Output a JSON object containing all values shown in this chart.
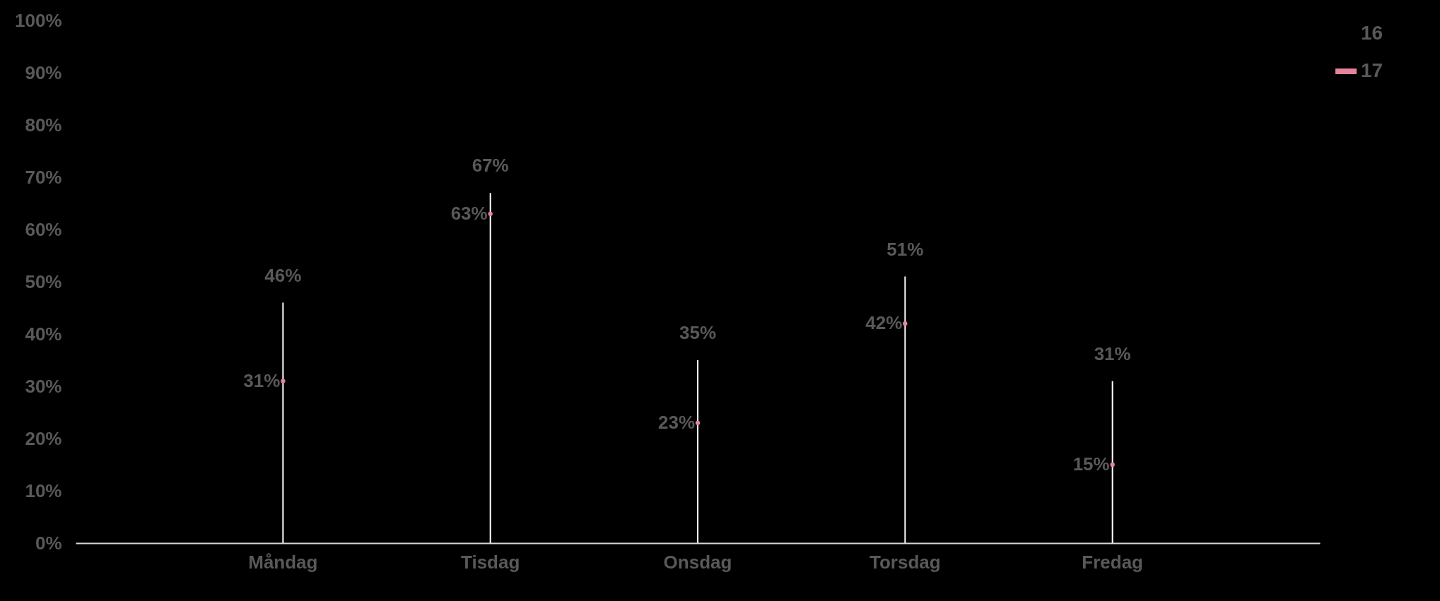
{
  "chart_data": {
    "type": "bar",
    "categories": [
      "Måndag",
      "Tisdag",
      "Onsdag",
      "Torsdag",
      "Fredag"
    ],
    "series": [
      {
        "name": "16",
        "color": "#ffffff",
        "values": [
          46,
          67,
          35,
          51,
          31
        ],
        "value_labels": [
          "46%",
          "67%",
          "35%",
          "51%",
          "31%"
        ]
      },
      {
        "name": "17",
        "type": "scatter",
        "marker": "circle",
        "color": "#e8839c",
        "values": [
          31,
          63,
          23,
          42,
          15
        ],
        "value_labels": [
          "31%",
          "63%",
          "23%",
          "42%",
          "15%"
        ]
      }
    ],
    "ylim": [
      0,
      100
    ],
    "yticks": [
      {
        "value": 0,
        "label": "0%"
      },
      {
        "value": 10,
        "label": "10%"
      },
      {
        "value": 20,
        "label": "20%"
      },
      {
        "value": 30,
        "label": "30%"
      },
      {
        "value": 40,
        "label": "40%"
      },
      {
        "value": 50,
        "label": "50%"
      },
      {
        "value": 60,
        "label": "60%"
      },
      {
        "value": 70,
        "label": "70%"
      },
      {
        "value": 80,
        "label": "80%"
      },
      {
        "value": 90,
        "label": "90%"
      },
      {
        "value": 100,
        "label": "100%"
      }
    ],
    "grid": false,
    "legend": "right"
  }
}
